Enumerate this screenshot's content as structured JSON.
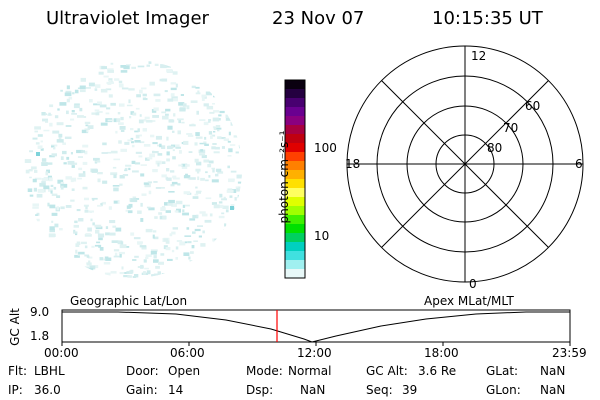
{
  "header": {
    "title": "Ultraviolet Imager",
    "date": "23 Nov 07",
    "time": "10:15:35 UT"
  },
  "colorbar": {
    "unit_label": "photon cm⁻²s⁻¹",
    "tick_labels": [
      "100",
      "10"
    ],
    "colors": [
      "#0a0010",
      "#240040",
      "#480070",
      "#6a0090",
      "#8a0080",
      "#a80040",
      "#c00010",
      "#e00000",
      "#ff4000",
      "#ff8000",
      "#ffb000",
      "#ffe000",
      "#ffff60",
      "#e0ff00",
      "#a0ff00",
      "#40f000",
      "#00e000",
      "#00d060",
      "#00d0c0",
      "#40e0e0",
      "#a0f0f0",
      "#e8f8f8"
    ]
  },
  "polar_plot": {
    "mlt_labels": {
      "top": "12",
      "bottom": "0",
      "left": "18",
      "right": "6"
    },
    "lat_labels": [
      "80",
      "70",
      "60"
    ]
  },
  "timeline": {
    "left_label": "Geographic Lat/Lon",
    "right_label": "Apex MLat/MLT",
    "axis_title": "GC Alt",
    "y_ticks": [
      "9.0",
      "1.8"
    ],
    "x_ticks": [
      "00:00",
      "06:00",
      "12:00",
      "18:00",
      "23:59"
    ],
    "marker_color": "#ff0000"
  },
  "status": {
    "row1": [
      {
        "label": "Flt:",
        "value": "LBHL"
      },
      {
        "label": "Door:",
        "value": "Open"
      },
      {
        "label": "Mode:",
        "value": "Normal"
      },
      {
        "label": "GC Alt:",
        "value": "3.6 Re"
      },
      {
        "label": "GLat:",
        "value": "NaN"
      }
    ],
    "row2": [
      {
        "label": "IP:",
        "value": "36.0"
      },
      {
        "label": "Gain:",
        "value": "14"
      },
      {
        "label": "Dsp:",
        "value": "NaN"
      },
      {
        "label": "Seq:",
        "value": "39"
      },
      {
        "label": "GLon:",
        "value": "NaN"
      }
    ]
  }
}
